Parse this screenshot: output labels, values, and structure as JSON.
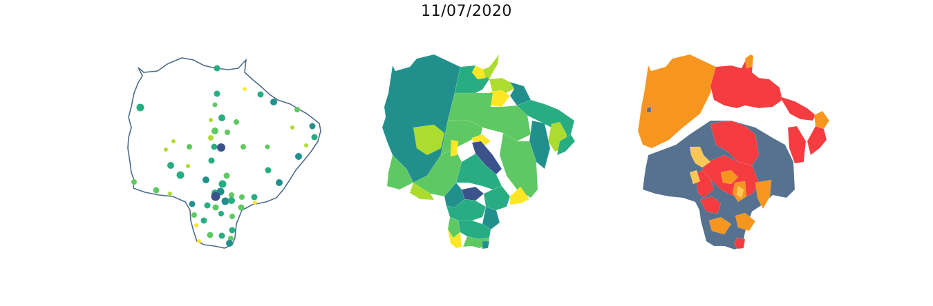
{
  "title": "11/07/2020",
  "colors": {
    "outline": "#4d6b8a",
    "viridis": [
      "#3b528b",
      "#21908d",
      "#27ad81",
      "#5ec962",
      "#addc30",
      "#fde725"
    ],
    "risk": {
      "gray": "#56728f",
      "red": "#f53c40",
      "orange": "#f7961f",
      "yellow": "#fbc858"
    }
  },
  "panels": [
    {
      "kind": "point-map",
      "style": "outline-with-bubbles"
    },
    {
      "kind": "choropleth",
      "palette": "viridis"
    },
    {
      "kind": "choropleth",
      "palette": "risk-categorical"
    }
  ]
}
